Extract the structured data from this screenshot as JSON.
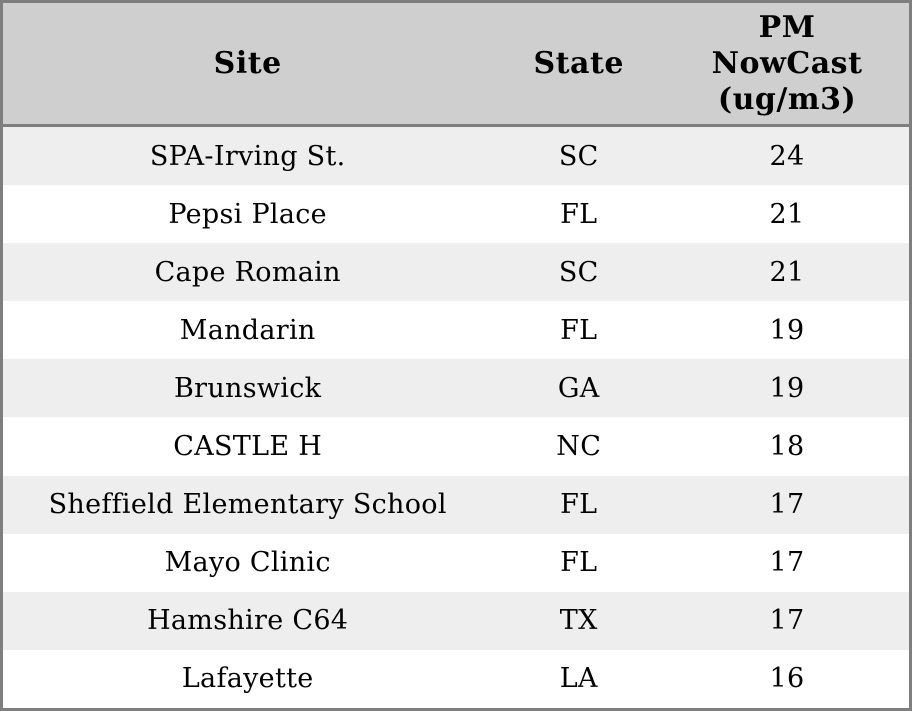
{
  "chart_data": {
    "type": "table",
    "columns": [
      "Site",
      "State",
      "PM NowCast (ug/m3)"
    ],
    "header_display": [
      "Site",
      "State",
      "PM\nNowCast\n(ug/m3)"
    ],
    "rows": [
      [
        "SPA-Irving St.",
        "SC",
        24
      ],
      [
        "Pepsi Place",
        "FL",
        21
      ],
      [
        "Cape Romain",
        "SC",
        21
      ],
      [
        "Mandarin",
        "FL",
        19
      ],
      [
        "Brunswick",
        "GA",
        19
      ],
      [
        "CASTLE H",
        "NC",
        18
      ],
      [
        "Sheffield Elementary School",
        "FL",
        17
      ],
      [
        "Mayo Clinic",
        "FL",
        17
      ],
      [
        "Hamshire C64",
        "TX",
        17
      ],
      [
        "Lafayette",
        "LA",
        16
      ]
    ]
  },
  "colors": {
    "header_bg": "#cfcfcf",
    "row_alt_bg": "#eeeeee",
    "row_bg": "#ffffff",
    "border": "#7e7e7e",
    "text": "#000000"
  }
}
